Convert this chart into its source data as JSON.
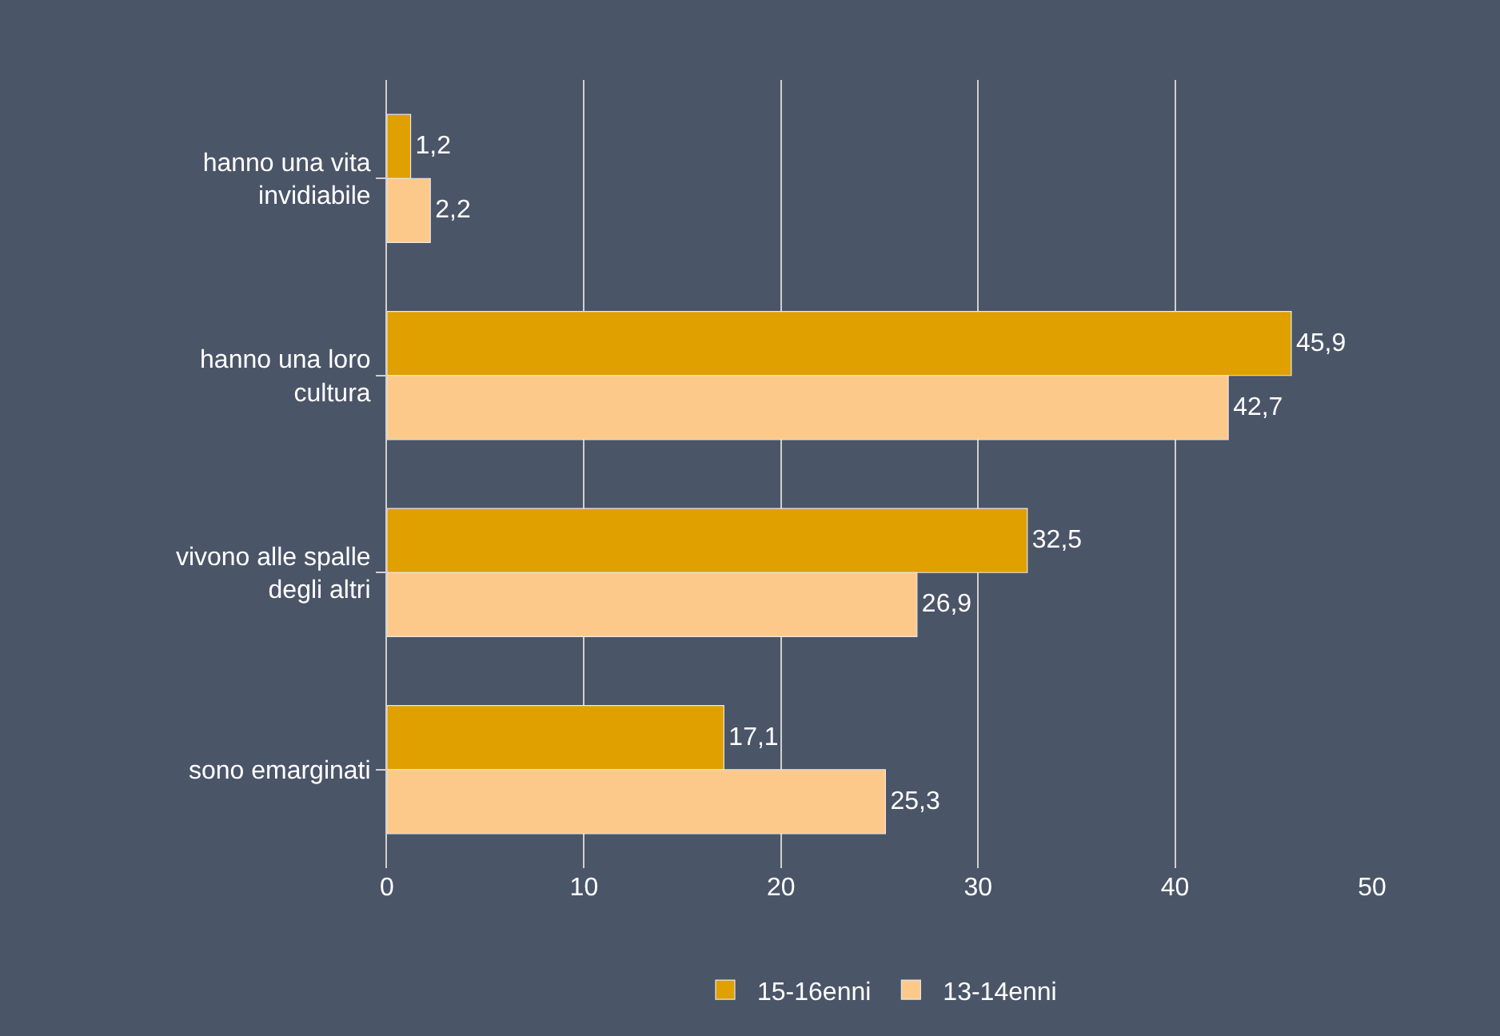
{
  "chart_data": {
    "type": "bar",
    "orientation": "horizontal",
    "categories": [
      "hanno una vita invidiabile",
      "hanno una loro cultura",
      "vivono alle spalle degli altri",
      "sono emarginati"
    ],
    "series": [
      {
        "name": "15-16enni",
        "color": "#dfa000",
        "values": [
          1.2,
          45.9,
          32.5,
          17.1
        ],
        "value_labels": [
          "1,2",
          "45,9",
          "32,5",
          "17,1"
        ]
      },
      {
        "name": "13-14enni",
        "color": "#fdc98a",
        "values": [
          2.2,
          42.7,
          26.9,
          25.3
        ],
        "value_labels": [
          "2,2",
          "42,7",
          "26,9",
          "25,3"
        ]
      }
    ],
    "xlim": [
      0,
      50
    ],
    "xticks": [
      0,
      10,
      20,
      30,
      40,
      50
    ],
    "grid": "x",
    "legend": "bottom"
  }
}
